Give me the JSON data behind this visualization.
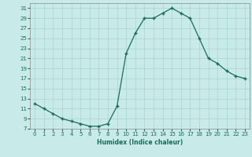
{
  "x": [
    0,
    1,
    2,
    3,
    4,
    5,
    6,
    7,
    8,
    9,
    10,
    11,
    12,
    13,
    14,
    15,
    16,
    17,
    18,
    19,
    20,
    21,
    22,
    23
  ],
  "y": [
    12,
    11,
    10,
    9,
    8.5,
    8,
    7.5,
    7.5,
    8,
    11.5,
    22,
    26,
    29,
    29,
    30,
    31,
    30,
    29,
    25,
    21,
    20,
    18.5,
    17.5,
    17
  ],
  "line_color": "#1a6b5a",
  "marker": "+",
  "bg_color": "#c8eae8",
  "grid_color": "#a8d4d2",
  "xlabel": "Humidex (Indice chaleur)",
  "xlim": [
    -0.5,
    23.5
  ],
  "ylim": [
    7,
    32
  ],
  "yticks": [
    7,
    9,
    11,
    13,
    15,
    17,
    19,
    21,
    23,
    25,
    27,
    29,
    31
  ],
  "xticks": [
    0,
    1,
    2,
    3,
    4,
    5,
    6,
    7,
    8,
    9,
    10,
    11,
    12,
    13,
    14,
    15,
    16,
    17,
    18,
    19,
    20,
    21,
    22,
    23
  ]
}
